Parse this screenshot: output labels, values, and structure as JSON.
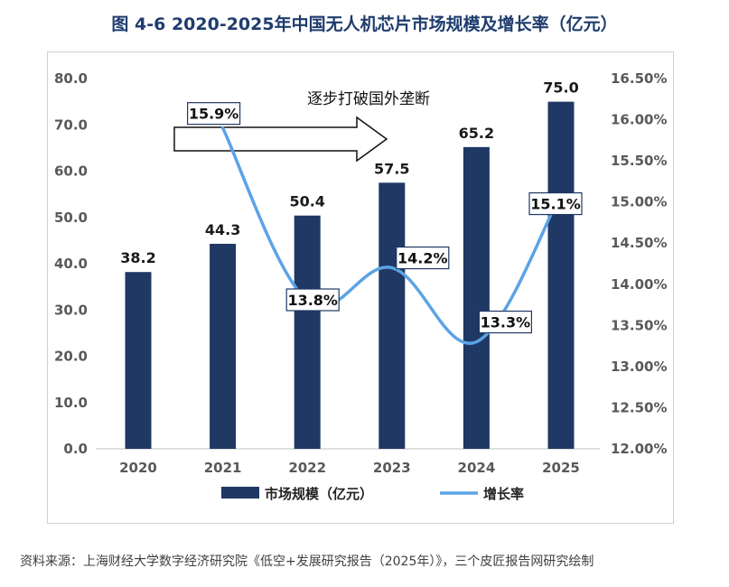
{
  "figure": {
    "title": "图 4-6 2020-2025年中国无人机芯片市场规模及增长率（亿元）",
    "source": "资料来源：上海财经大学数字经济研究院《低空+发展研究报告（2025年）》，三个皮匠报告网研究绘制"
  },
  "chart_data": {
    "type": "bar",
    "title": "2020-2025年中国无人机芯片市场规模及增长率（亿元）",
    "categories": [
      "2020",
      "2021",
      "2022",
      "2023",
      "2024",
      "2025"
    ],
    "series": [
      {
        "name": "市场规模（亿元）",
        "type": "bar",
        "axis": "left",
        "values": [
          38.2,
          44.3,
          50.4,
          57.5,
          65.2,
          75.0
        ],
        "labels": [
          "38.2",
          "44.3",
          "50.4",
          "57.5",
          "65.2",
          "75.0"
        ]
      },
      {
        "name": "增长率",
        "type": "line",
        "axis": "right",
        "smooth": true,
        "x": [
          "2021",
          "2022",
          "2023",
          "2024",
          "2025"
        ],
        "values": [
          15.9,
          13.8,
          14.2,
          13.3,
          15.1
        ],
        "labels": [
          "15.9%",
          "13.8%",
          "14.2%",
          "13.3%",
          "15.1%"
        ]
      }
    ],
    "y_left": {
      "min": 0,
      "max": 80,
      "ticks": [
        0,
        10,
        20,
        30,
        40,
        50,
        60,
        70,
        80
      ],
      "tick_labels": [
        "0.0",
        "10.0",
        "20.0",
        "30.0",
        "40.0",
        "50.0",
        "60.0",
        "70.0",
        "80.0"
      ]
    },
    "y_right": {
      "min": 12.0,
      "max": 16.5,
      "ticks": [
        12.0,
        12.5,
        13.0,
        13.5,
        14.0,
        14.5,
        15.0,
        15.5,
        16.0,
        16.5
      ],
      "tick_labels": [
        "12.00%",
        "12.50%",
        "13.00%",
        "13.50%",
        "14.00%",
        "14.50%",
        "15.00%",
        "15.50%",
        "16.00%",
        "16.50%"
      ]
    },
    "annotation": "逐步打破国外垄断",
    "legend": [
      {
        "name": "市场规模（亿元）",
        "marker": "bar"
      },
      {
        "name": "增长率",
        "marker": "line"
      }
    ],
    "legend_position": "bottom",
    "grid": false,
    "colors": {
      "bar": "#1f3864",
      "line": "#5ba3e6",
      "title": "#1f3c6e",
      "axis_text": "#595959"
    }
  }
}
